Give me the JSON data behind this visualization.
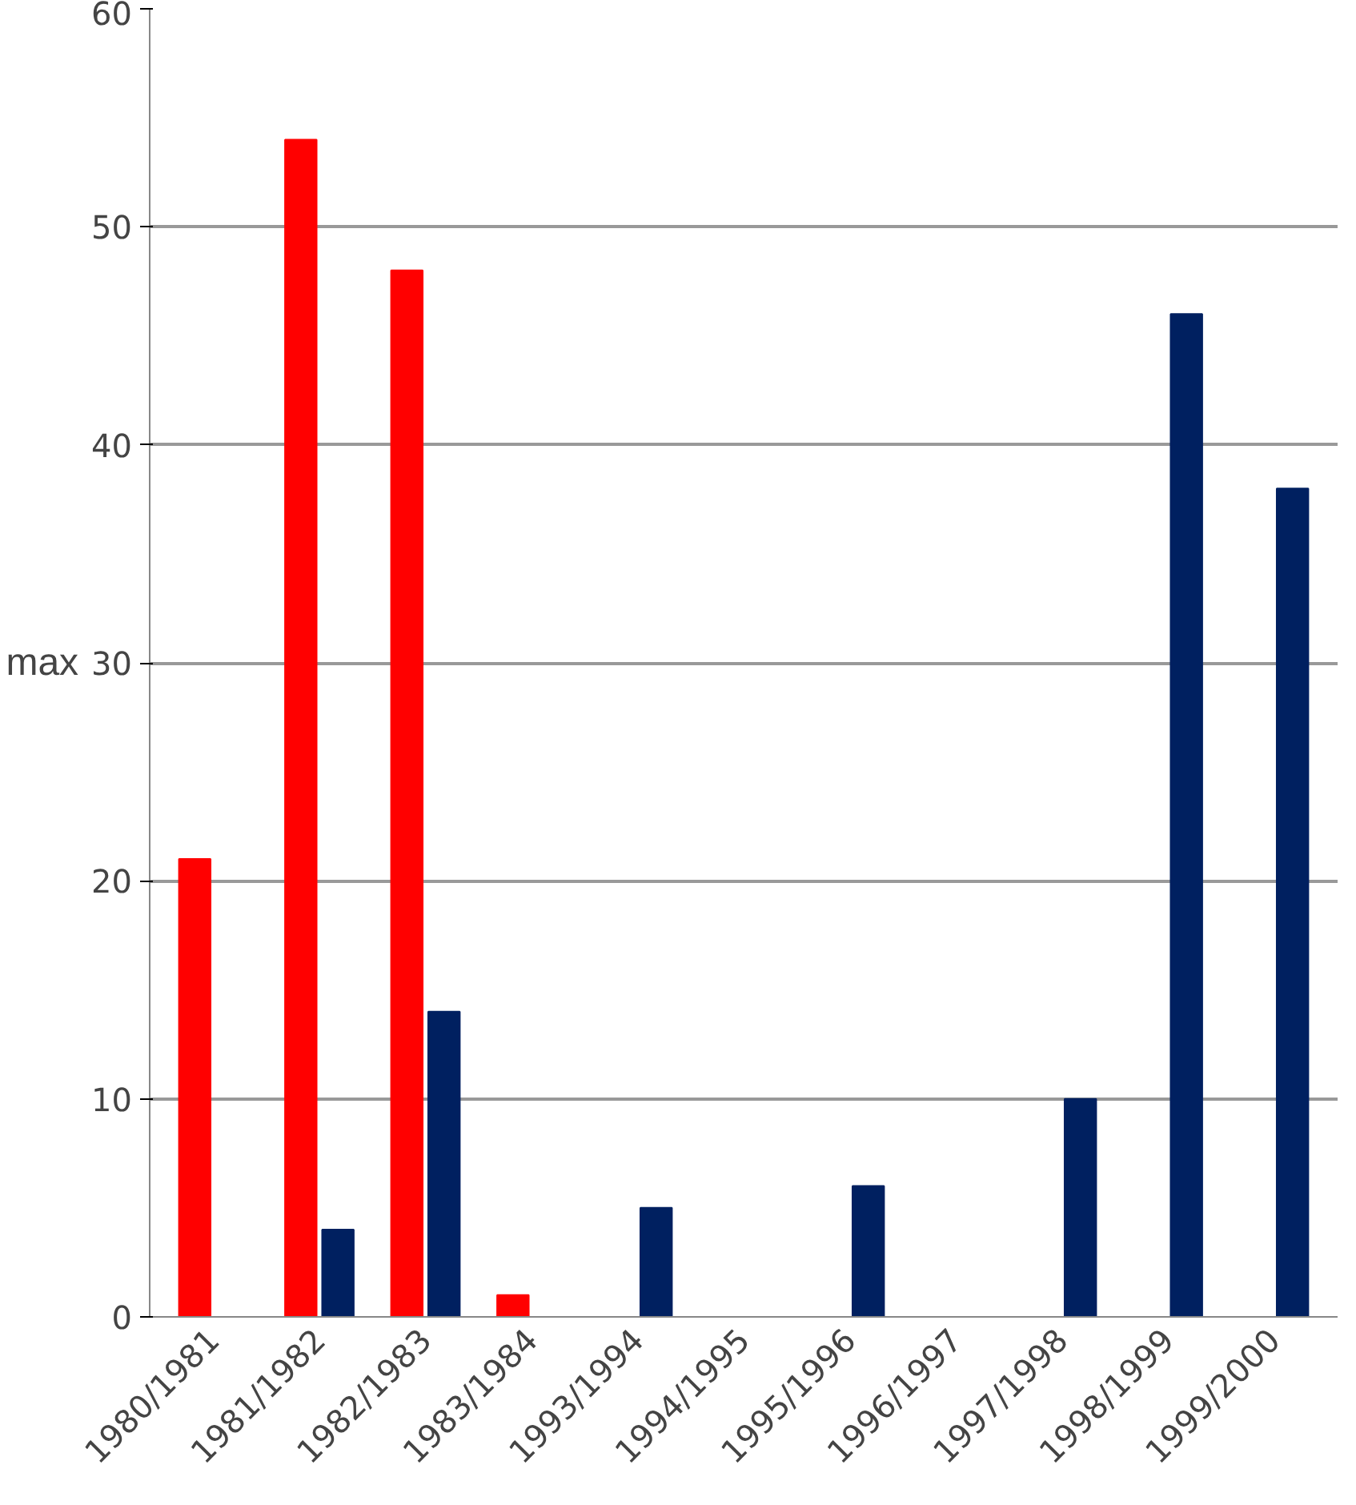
{
  "chart_data": {
    "type": "bar",
    "ylabel": "max",
    "categories": [
      "1980/1981",
      "1981/1982",
      "1982/1983",
      "1983/1984",
      "1993/1994",
      "1994/1995",
      "1995/1996",
      "1996/1997",
      "1997/1998",
      "1998/1999",
      "1999/2000"
    ],
    "series": [
      {
        "color": "#ff0000",
        "values": [
          21,
          54,
          48,
          1,
          0,
          0,
          0,
          0,
          0,
          0,
          0
        ]
      },
      {
        "color": "#002060",
        "values": [
          0,
          4,
          14,
          0,
          5,
          0,
          6,
          0,
          10,
          46,
          38
        ]
      }
    ],
    "ylim": [
      0,
      60
    ],
    "yticks": [
      0,
      10,
      20,
      30,
      40,
      50,
      60
    ],
    "grid": "y"
  }
}
